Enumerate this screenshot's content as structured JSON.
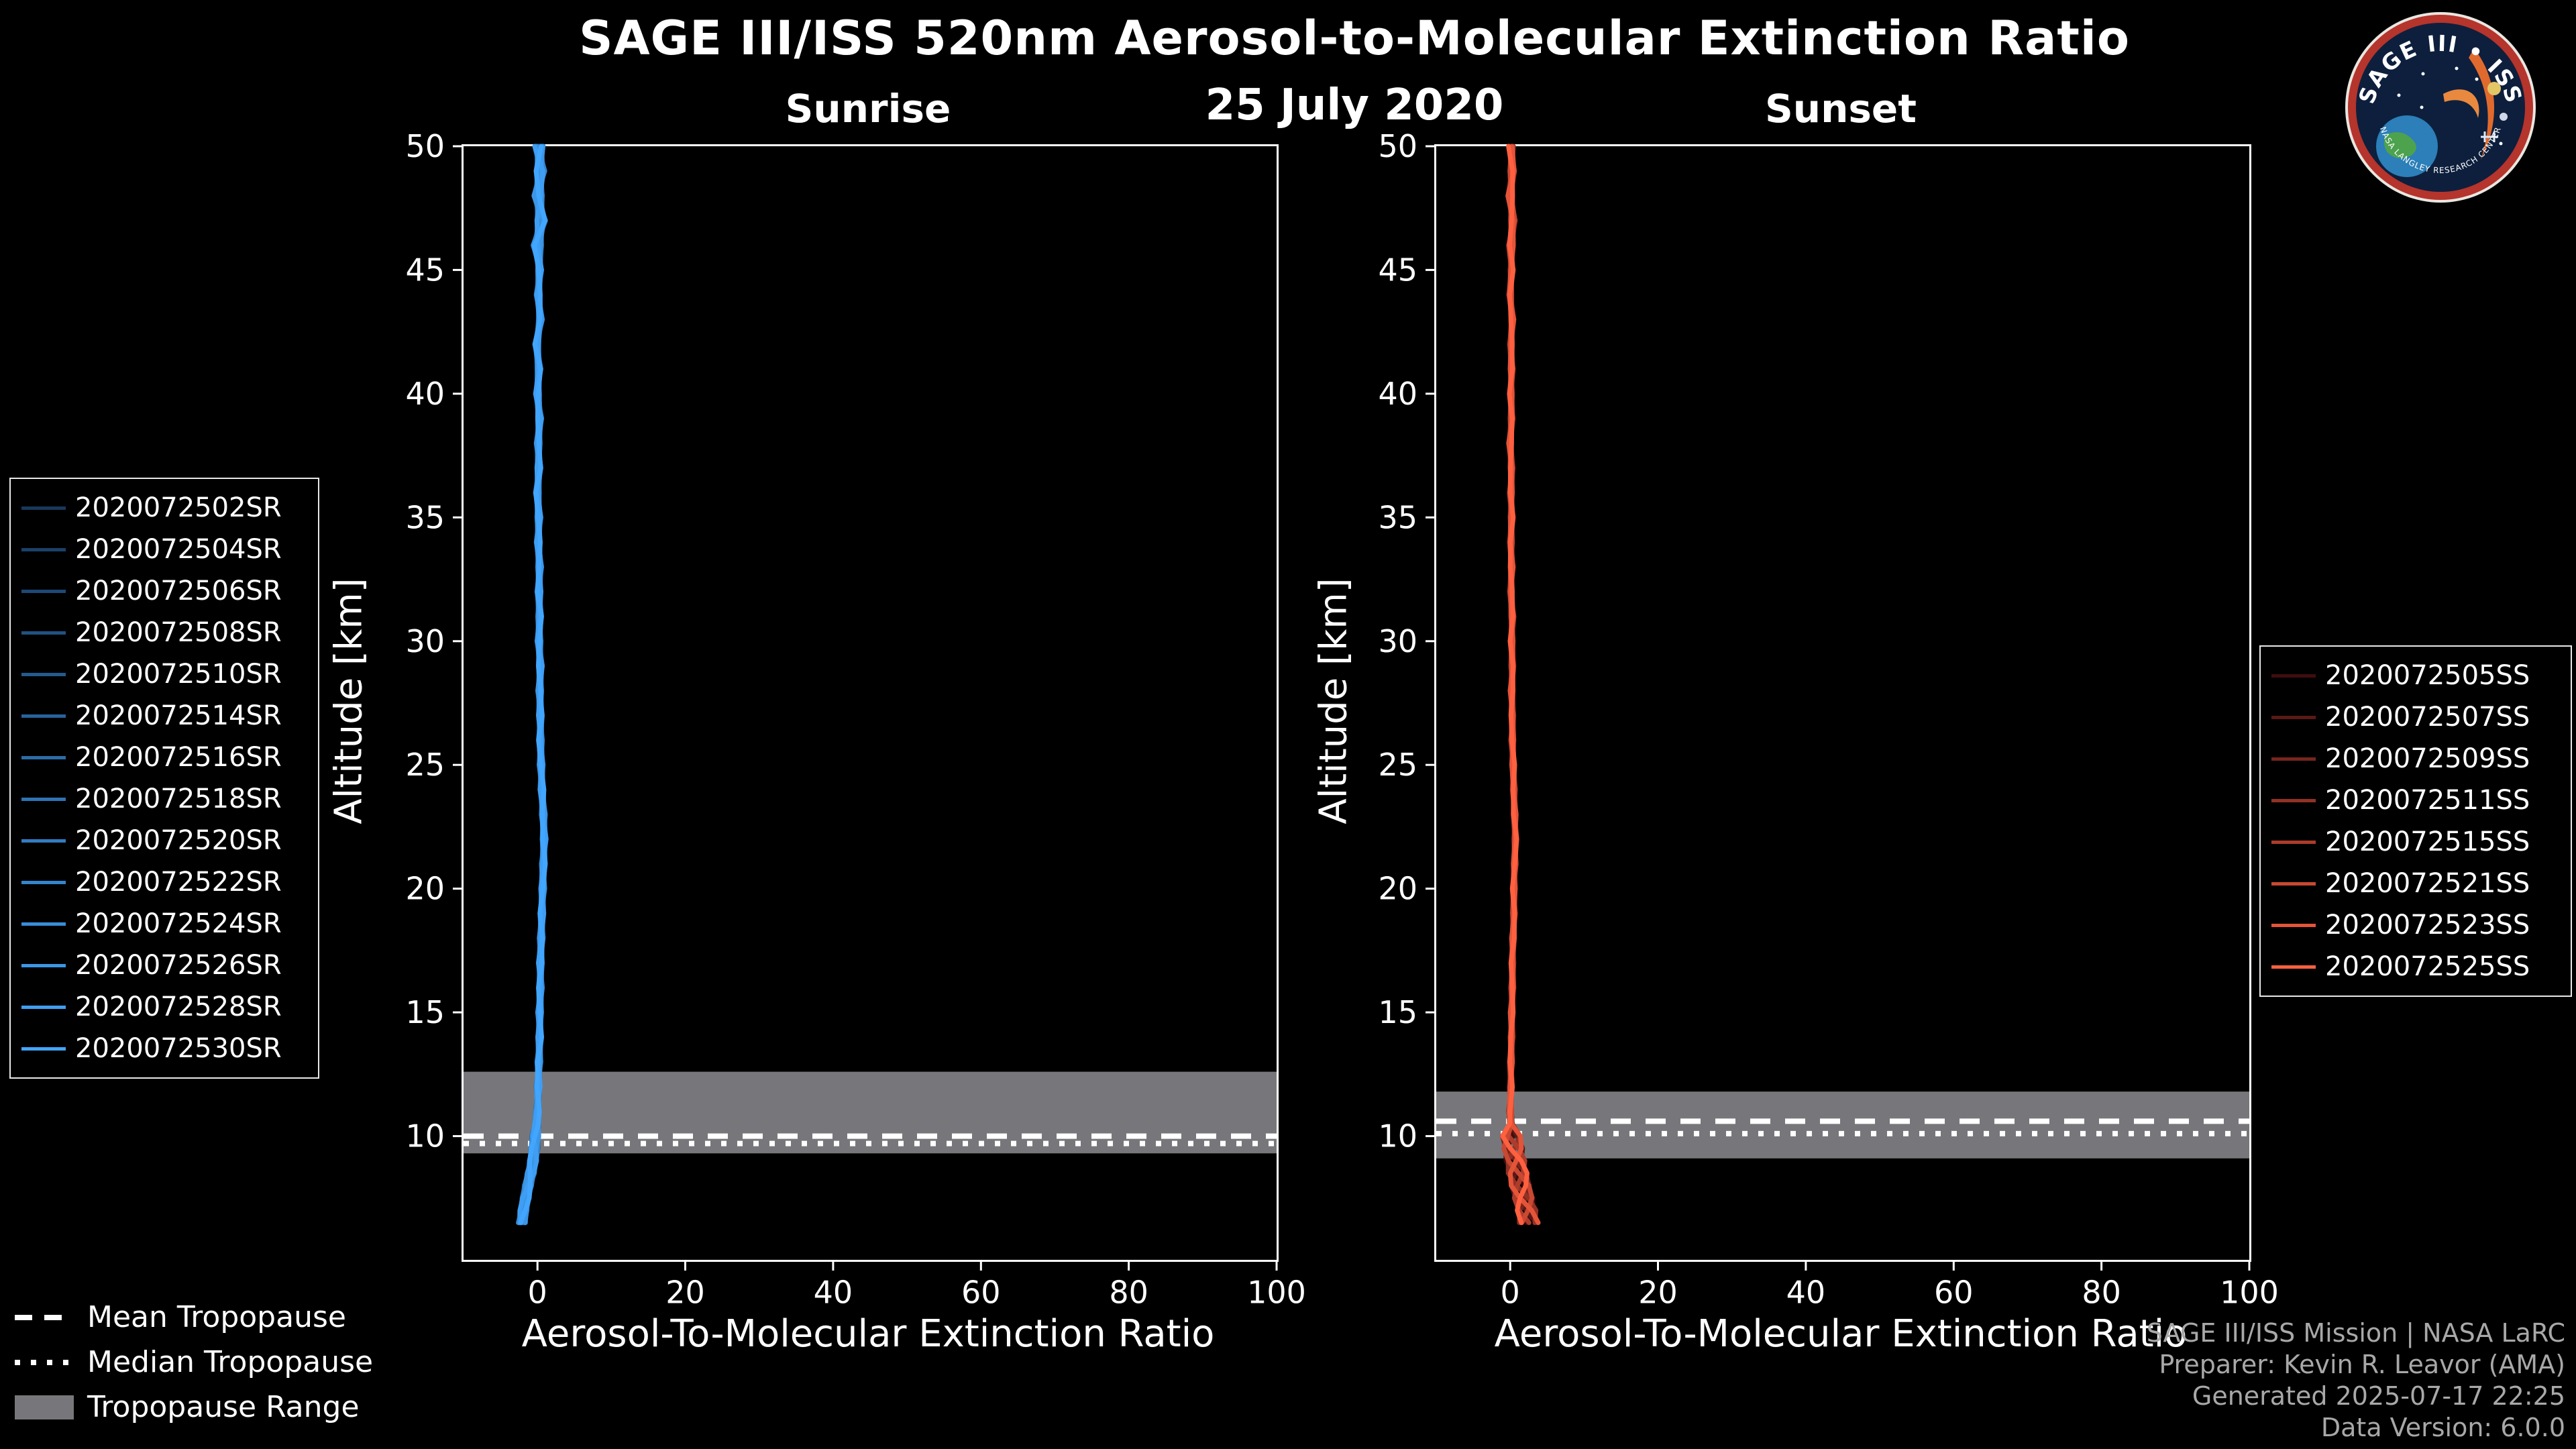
{
  "header": {
    "title": "SAGE III/ISS 520nm Aerosol-to-Molecular Extinction Ratio",
    "date": "25 July 2020"
  },
  "logo": {
    "title": "SAGE III • ISS",
    "arc_text": "NASA LANGLEY RESEARCH CENTER"
  },
  "colors": {
    "background": "#000000",
    "text": "#ffffff",
    "credits_text": "#a8a8a8",
    "plot_border": "#ffffff",
    "tropopause_band": "#77777b",
    "tropopause_line": "#ffffff",
    "sunrise_accent": "#42a6ff",
    "sunset_accent": "#ff6040"
  },
  "tropopause_legend": {
    "mean_label": "Mean Tropopause",
    "median_label": "Median Tropopause",
    "range_label": "Tropopause Range"
  },
  "credits": {
    "lines": [
      "SAGE III/ISS Mission | NASA LaRC",
      "Preparer: Kevin R. Leavor (AMA)",
      "Generated 2025-07-17 22:25",
      "Data Version: 6.0.0"
    ]
  },
  "chart_data": [
    {
      "type": "line",
      "title": "Sunrise",
      "xlabel": "Aerosol-To-Molecular Extinction Ratio",
      "ylabel": "Altitude [km]",
      "xlim": [
        -10,
        100
      ],
      "ylim": [
        5,
        50
      ],
      "xticks": [
        0,
        20,
        40,
        60,
        80,
        100
      ],
      "yticks": [
        10,
        15,
        20,
        25,
        30,
        35,
        40,
        45,
        50
      ],
      "grid": false,
      "legend_position": "outside-left",
      "tropopause": {
        "mean_km": 10.0,
        "median_km": 9.7,
        "range_km": [
          9.3,
          12.6
        ]
      },
      "spread": {
        "top": 0.6,
        "mid": 0.28,
        "bottom": 0.5
      },
      "series": [
        {
          "name": "2020072502SR",
          "color": "#17395d"
        },
        {
          "name": "2020072504SR",
          "color": "#1a4169"
        },
        {
          "name": "2020072506SR",
          "color": "#1e4a76"
        },
        {
          "name": "2020072508SR",
          "color": "#215282"
        },
        {
          "name": "2020072510SR",
          "color": "#245b8f"
        },
        {
          "name": "2020072514SR",
          "color": "#28639b"
        },
        {
          "name": "2020072516SR",
          "color": "#2b6ca8"
        },
        {
          "name": "2020072518SR",
          "color": "#2e74b4"
        },
        {
          "name": "2020072520SR",
          "color": "#327cc1"
        },
        {
          "name": "2020072522SR",
          "color": "#3585cd"
        },
        {
          "name": "2020072524SR",
          "color": "#388dda"
        },
        {
          "name": "2020072526SR",
          "color": "#3c96e6"
        },
        {
          "name": "2020072528SR",
          "color": "#3f9ef3"
        },
        {
          "name": "2020072530SR",
          "color": "#42a6ff"
        }
      ],
      "profile": {
        "altitude_km": [
          50,
          49,
          48,
          47,
          46,
          45,
          44,
          43,
          42,
          41,
          40,
          39,
          38,
          37,
          36,
          35,
          34,
          33,
          32,
          31,
          30,
          29,
          28,
          27,
          26,
          25,
          24,
          23,
          22,
          21,
          20,
          19,
          18,
          17,
          16,
          15,
          14,
          13,
          12,
          11,
          10.5,
          10,
          9.5,
          9,
          8.5,
          8,
          7.5,
          7,
          6.5
        ],
        "ratio": [
          0.2,
          0.4,
          0.1,
          0.5,
          0.0,
          0.3,
          0.1,
          0.4,
          -0.1,
          0.2,
          0.0,
          0.3,
          0.1,
          0.2,
          0.0,
          0.2,
          0.1,
          0.3,
          0.2,
          0.3,
          0.2,
          0.4,
          0.3,
          0.4,
          0.4,
          0.5,
          0.6,
          0.8,
          0.9,
          0.8,
          0.7,
          0.6,
          0.5,
          0.4,
          0.4,
          0.3,
          0.3,
          0.2,
          0.1,
          0.0,
          -0.1,
          -0.3,
          -0.4,
          -0.6,
          -0.9,
          -1.3,
          -1.6,
          -1.9,
          -2.1
        ]
      }
    },
    {
      "type": "line",
      "title": "Sunset",
      "xlabel": "Aerosol-To-Molecular Extinction Ratio",
      "ylabel": "Altitude [km]",
      "xlim": [
        -10,
        100
      ],
      "ylim": [
        5,
        50
      ],
      "xticks": [
        0,
        20,
        40,
        60,
        80,
        100
      ],
      "yticks": [
        10,
        15,
        20,
        25,
        30,
        35,
        40,
        45,
        50
      ],
      "grid": false,
      "legend_position": "outside-right",
      "tropopause": {
        "mean_km": 10.6,
        "median_km": 10.1,
        "range_km": [
          9.1,
          11.8
        ]
      },
      "spread": {
        "top": 0.35,
        "mid": 0.22,
        "bottom": 1.3
      },
      "series": [
        {
          "name": "2020072505SS",
          "color": "#400d0f"
        },
        {
          "name": "2020072507SS",
          "color": "#5b1916"
        },
        {
          "name": "2020072509SS",
          "color": "#77251d"
        },
        {
          "name": "2020072511SS",
          "color": "#923124"
        },
        {
          "name": "2020072515SS",
          "color": "#ad3c2b"
        },
        {
          "name": "2020072521SS",
          "color": "#c84832"
        },
        {
          "name": "2020072523SS",
          "color": "#e45439"
        },
        {
          "name": "2020072525SS",
          "color": "#ff6040"
        }
      ],
      "profile": {
        "altitude_km": [
          50,
          49,
          48,
          47,
          46,
          45,
          44,
          43,
          42,
          41,
          40,
          39,
          38,
          37,
          36,
          35,
          34,
          33,
          32,
          31,
          30,
          29,
          28,
          27,
          26,
          25,
          24,
          23,
          22,
          21,
          20,
          19,
          18,
          17,
          16,
          15,
          14,
          13,
          12,
          11,
          10.5,
          10,
          9.5,
          9,
          8.5,
          8,
          7.5,
          7,
          6.5
        ],
        "ratio": [
          0.1,
          0.3,
          0.0,
          0.4,
          0.1,
          0.2,
          0.0,
          0.3,
          0.1,
          0.2,
          0.1,
          0.2,
          0.0,
          0.2,
          0.1,
          0.2,
          0.1,
          0.2,
          0.1,
          0.3,
          0.2,
          0.3,
          0.2,
          0.3,
          0.3,
          0.4,
          0.5,
          0.6,
          0.7,
          0.6,
          0.5,
          0.5,
          0.4,
          0.3,
          0.3,
          0.2,
          0.2,
          0.1,
          0.1,
          0.0,
          0.1,
          0.2,
          0.4,
          0.7,
          1.0,
          1.4,
          1.8,
          2.2,
          2.5
        ]
      }
    }
  ]
}
